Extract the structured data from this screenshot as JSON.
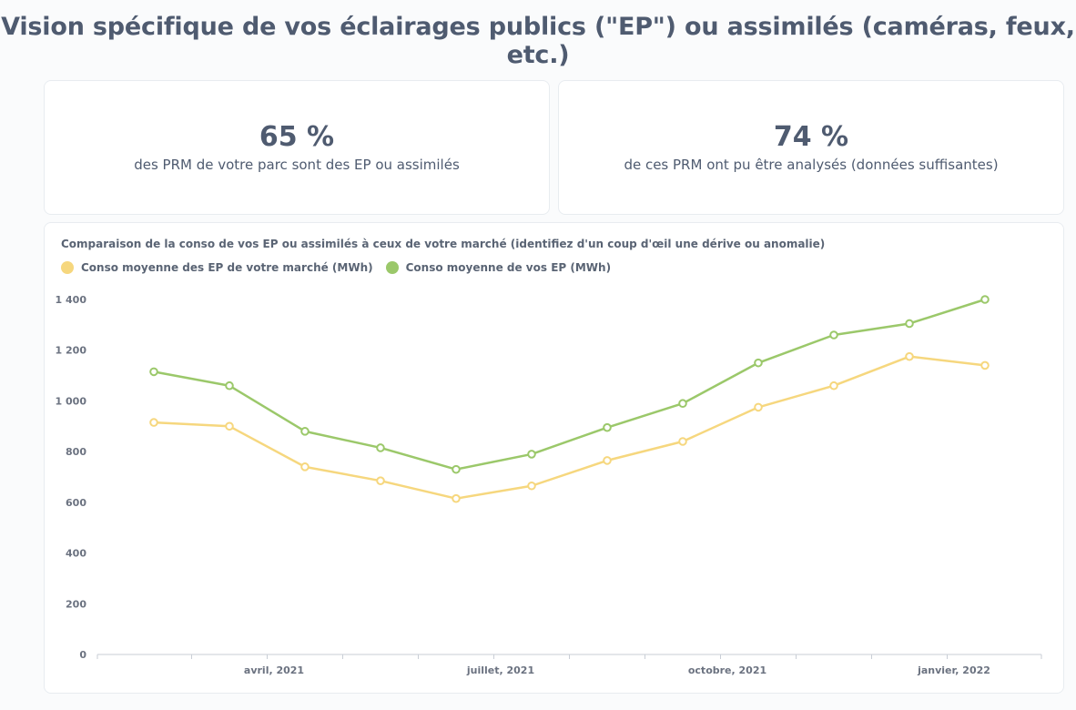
{
  "page": {
    "title": "Vision spécifique de vos éclairages publics (\"EP\") ou assimilés (caméras, feux, etc.)"
  },
  "kpis": [
    {
      "value": "65 %",
      "caption": "des PRM de votre parc sont des EP ou assimilés"
    },
    {
      "value": "74 %",
      "caption": "de ces PRM ont pu être analysés (données suffisantes)"
    }
  ],
  "colors": {
    "market": "#f6d77e",
    "mine": "#9bc86a",
    "axis": "#c9ced6"
  },
  "chart_data": {
    "type": "line",
    "title": "Comparaison de la conso de vos EP ou assimilés à ceux de votre marché (identifiez d'un coup d'œil une dérive ou anomalie)",
    "xlabel": "",
    "ylabel": "",
    "ylim": [
      0,
      1400
    ],
    "yticks": [
      0,
      200,
      400,
      600,
      800,
      1000,
      1200,
      1400
    ],
    "ytick_labels": [
      "0",
      "200",
      "400",
      "600",
      "800",
      "1 000",
      "1 200",
      "1 400"
    ],
    "x": [
      "2021-02",
      "2021-03",
      "2021-04",
      "2021-05",
      "2021-06",
      "2021-07",
      "2021-08",
      "2021-09",
      "2021-10",
      "2021-11",
      "2021-12",
      "2022-01"
    ],
    "x_tick_labels": [
      {
        "label": "avril, 2021",
        "month_index": 2
      },
      {
        "label": "juillet, 2021",
        "month_index": 5
      },
      {
        "label": "octobre, 2021",
        "month_index": 8
      },
      {
        "label": "janvier, 2022",
        "month_index": 11
      }
    ],
    "series": [
      {
        "name": "Conso moyenne des EP de votre marché (MWh)",
        "color_key": "market",
        "values": [
          915,
          900,
          740,
          685,
          615,
          665,
          765,
          840,
          975,
          1060,
          1175,
          1140
        ]
      },
      {
        "name": "Conso moyenne de vos EP (MWh)",
        "color_key": "mine",
        "values": [
          1115,
          1060,
          880,
          815,
          730,
          790,
          895,
          990,
          1150,
          1260,
          1305,
          1400
        ]
      }
    ],
    "legend": "top-left",
    "grid": false
  }
}
